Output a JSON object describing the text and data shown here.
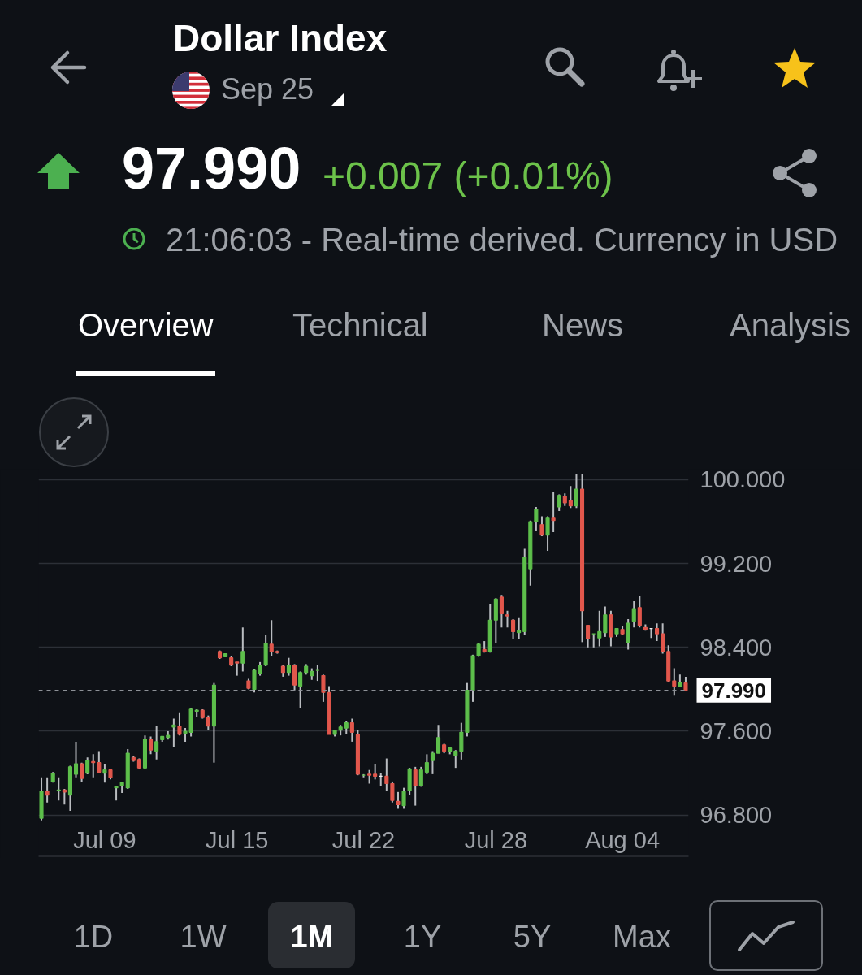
{
  "chart_data": {
    "type": "candlestick",
    "title": "Dollar Index",
    "subtitle": "Sep 25",
    "annotations": [
      "97.990",
      "+0.007 (+0.01%)",
      "21:06:03 - Real-time derived. Currency in USD",
      "Overview",
      "Technical",
      "News",
      "Analysis",
      "1D",
      "1W",
      "1M",
      "1Y",
      "5Y",
      "Max"
    ],
    "categories": [
      null,
      null,
      null,
      null,
      null,
      null,
      null,
      null,
      null,
      null,
      null,
      "Jul 09",
      null,
      null,
      null,
      null,
      null,
      null,
      null,
      null,
      null,
      null,
      null,
      null,
      null,
      null,
      null,
      null,
      null,
      null,
      null,
      null,
      null,
      null,
      "Jul 15",
      null,
      null,
      null,
      null,
      null,
      null,
      null,
      null,
      null,
      null,
      null,
      null,
      null,
      null,
      null,
      null,
      null,
      null,
      null,
      null,
      null,
      "Jul 22",
      null,
      null,
      null,
      null,
      null,
      null,
      null,
      null,
      null,
      null,
      null,
      null,
      null,
      null,
      null,
      null,
      null,
      null,
      null,
      null,
      null,
      null,
      "Jul 28",
      null,
      null,
      null,
      null,
      null,
      null,
      null,
      null,
      null,
      null,
      null,
      null,
      null,
      null,
      null,
      null,
      null,
      null,
      null,
      null,
      null,
      "Aug 04",
      null,
      null,
      null,
      null,
      null,
      null,
      null,
      null,
      null,
      null,
      null
    ],
    "ohlc": [
      [
        96.77,
        97.16,
        96.75,
        97.03
      ],
      [
        97.03,
        97.16,
        96.92,
        96.99
      ],
      [
        97.12,
        97.21,
        97.11,
        97.2
      ],
      [
        97.03,
        97.16,
        96.94,
        97.04
      ],
      [
        97.04,
        97.05,
        96.9,
        97.02
      ],
      [
        96.99,
        97.27,
        96.84,
        97.26
      ],
      [
        97.19,
        97.5,
        97.16,
        97.29
      ],
      [
        97.29,
        97.3,
        97.12,
        97.15
      ],
      [
        97.2,
        97.35,
        97.19,
        97.32
      ],
      [
        97.31,
        97.38,
        97.16,
        97.3
      ],
      [
        97.3,
        97.41,
        97.2,
        97.21
      ],
      [
        97.2,
        97.29,
        97.11,
        97.23
      ],
      [
        97.23,
        97.24,
        97.14,
        97.16
      ],
      [
        97.06,
        97.07,
        96.94,
        97.07
      ],
      [
        97.08,
        97.12,
        97.01,
        97.11
      ],
      [
        97.06,
        97.43,
        97.05,
        97.39
      ],
      [
        97.35,
        97.36,
        97.31,
        97.32
      ],
      [
        97.33,
        97.34,
        97.24,
        97.25
      ],
      [
        97.25,
        97.56,
        97.24,
        97.52
      ],
      [
        97.52,
        97.55,
        97.38,
        97.42
      ],
      [
        97.41,
        97.65,
        97.33,
        97.5
      ],
      [
        97.52,
        97.55,
        97.5,
        97.55
      ],
      [
        97.54,
        97.6,
        97.52,
        97.56
      ],
      [
        97.64,
        97.72,
        97.45,
        97.66
      ],
      [
        97.65,
        97.78,
        97.56,
        97.57
      ],
      [
        97.58,
        97.63,
        97.5,
        97.6
      ],
      [
        97.59,
        97.82,
        97.55,
        97.81
      ],
      [
        97.79,
        97.81,
        97.74,
        97.8
      ],
      [
        97.8,
        97.81,
        97.72,
        97.73
      ],
      [
        97.73,
        97.75,
        97.61,
        97.65
      ],
      [
        97.65,
        98.06,
        97.3,
        98.04
      ],
      [
        98.36,
        98.37,
        98.29,
        98.3
      ],
      [
        98.31,
        98.34,
        98.31,
        98.34
      ],
      [
        98.3,
        98.32,
        98.22,
        98.23
      ],
      [
        98.26,
        98.26,
        98.13,
        98.25
      ],
      [
        98.25,
        98.59,
        98.17,
        98.36
      ],
      [
        98.08,
        98.1,
        98.0,
        98.01
      ],
      [
        98.0,
        98.19,
        97.97,
        98.18
      ],
      [
        98.15,
        98.26,
        98.13,
        98.23
      ],
      [
        98.23,
        98.52,
        98.22,
        98.44
      ],
      [
        98.43,
        98.66,
        98.32,
        98.36
      ],
      [
        98.36,
        98.37,
        98.34,
        98.35
      ],
      [
        98.22,
        98.23,
        98.12,
        98.16
      ],
      [
        98.16,
        98.3,
        98.13,
        98.23
      ],
      [
        98.23,
        98.24,
        97.99,
        98.04
      ],
      [
        98.03,
        98.17,
        97.82,
        98.16
      ],
      [
        98.16,
        98.24,
        98.14,
        98.22
      ],
      [
        98.13,
        98.2,
        98.09,
        98.17
      ],
      [
        98.18,
        98.23,
        98.08,
        98.18
      ],
      [
        98.13,
        98.14,
        97.88,
        97.97
      ],
      [
        97.97,
        98.03,
        97.57,
        97.57
      ],
      [
        97.57,
        97.61,
        97.55,
        97.61
      ],
      [
        97.61,
        97.66,
        97.56,
        97.64
      ],
      [
        97.63,
        97.7,
        97.57,
        97.68
      ],
      [
        97.68,
        97.72,
        97.5,
        97.59
      ],
      [
        97.57,
        97.61,
        97.18,
        97.19
      ],
      [
        97.18,
        97.19,
        97.16,
        97.18
      ],
      [
        97.19,
        97.23,
        97.1,
        97.18
      ],
      [
        97.19,
        97.29,
        97.14,
        97.17
      ],
      [
        97.17,
        97.2,
        97.08,
        97.17
      ],
      [
        97.17,
        97.34,
        97.03,
        97.1
      ],
      [
        97.1,
        97.12,
        96.92,
        96.94
      ],
      [
        96.93,
        97.02,
        96.86,
        96.9
      ],
      [
        96.89,
        97.06,
        96.86,
        97.03
      ],
      [
        97.03,
        97.25,
        96.99,
        97.24
      ],
      [
        97.23,
        97.26,
        96.89,
        97.08
      ],
      [
        97.08,
        97.26,
        97.07,
        97.23
      ],
      [
        97.21,
        97.38,
        97.19,
        97.3
      ],
      [
        97.32,
        97.41,
        97.19,
        97.39
      ],
      [
        97.39,
        97.66,
        97.39,
        97.54
      ],
      [
        97.47,
        97.48,
        97.39,
        97.41
      ],
      [
        97.41,
        97.45,
        97.38,
        97.44
      ],
      [
        97.37,
        97.42,
        97.25,
        97.41
      ],
      [
        97.41,
        97.68,
        97.33,
        97.59
      ],
      [
        97.59,
        98.06,
        97.55,
        97.99
      ],
      [
        97.99,
        98.33,
        97.88,
        98.32
      ],
      [
        98.32,
        98.44,
        98.31,
        98.43
      ],
      [
        98.38,
        98.46,
        98.35,
        98.36
      ],
      [
        98.36,
        98.81,
        98.35,
        98.66
      ],
      [
        98.66,
        98.87,
        98.44,
        98.86
      ],
      [
        98.88,
        98.9,
        98.59,
        98.72
      ],
      [
        98.71,
        98.75,
        98.59,
        98.7
      ],
      [
        98.66,
        98.67,
        98.48,
        98.55
      ],
      [
        98.54,
        98.68,
        98.48,
        98.56
      ],
      [
        98.55,
        99.34,
        98.52,
        99.26
      ],
      [
        99.15,
        99.61,
        98.99,
        99.6
      ],
      [
        99.6,
        99.74,
        99.51,
        99.72
      ],
      [
        99.57,
        99.65,
        99.46,
        99.47
      ],
      [
        99.47,
        99.65,
        99.32,
        99.64
      ],
      [
        99.64,
        99.88,
        99.5,
        99.61
      ],
      [
        99.74,
        99.86,
        99.7,
        99.85
      ],
      [
        99.84,
        99.87,
        99.75,
        99.78
      ],
      [
        99.8,
        99.94,
        99.73,
        99.75
      ],
      [
        99.75,
        100.05,
        99.73,
        99.91
      ],
      [
        99.91,
        100.05,
        98.45,
        98.75
      ],
      [
        98.61,
        98.61,
        98.4,
        98.48
      ],
      [
        98.53,
        98.53,
        98.4,
        98.53
      ],
      [
        98.49,
        98.75,
        98.41,
        98.55
      ],
      [
        98.54,
        98.79,
        98.5,
        98.71
      ],
      [
        98.71,
        98.75,
        98.41,
        98.5
      ],
      [
        98.53,
        98.58,
        98.5,
        98.58
      ],
      [
        98.57,
        98.6,
        98.52,
        98.53
      ],
      [
        98.45,
        98.67,
        98.38,
        98.63
      ],
      [
        98.65,
        98.84,
        98.59,
        98.77
      ],
      [
        98.78,
        98.89,
        98.59,
        98.61
      ],
      [
        98.59,
        98.62,
        98.56,
        98.57
      ],
      [
        98.58,
        98.58,
        98.49,
        98.58
      ],
      [
        98.58,
        98.63,
        98.46,
        98.53
      ],
      [
        98.53,
        98.63,
        98.34,
        98.36
      ],
      [
        98.36,
        98.42,
        98.07,
        98.08
      ],
      [
        98.08,
        98.2,
        97.94,
        98.03
      ],
      [
        98.03,
        98.14,
        98.03,
        98.06
      ],
      [
        98.06,
        98.12,
        97.99,
        97.99
      ]
    ],
    "color": "#b9bcc0",
    "colors": [
      "#5dbf4b",
      "#e2574c",
      "#5dbf4b",
      "#5dbf4b",
      "#e2574c",
      "#5dbf4b",
      "#5dbf4b",
      "#e2574c",
      "#5dbf4b",
      "#e2574c",
      "#e2574c",
      "#5dbf4b",
      "#e2574c",
      "#5dbf4b",
      "#5dbf4b",
      "#5dbf4b",
      "#e2574c",
      "#e2574c",
      "#5dbf4b",
      "#e2574c",
      "#5dbf4b",
      "#5dbf4b",
      "#5dbf4b",
      "#5dbf4b",
      "#e2574c",
      "#5dbf4b",
      "#5dbf4b",
      "#5dbf4b",
      "#e2574c",
      "#e2574c",
      "#5dbf4b",
      "#e2574c",
      "#5dbf4b",
      "#e2574c",
      "#e2574c",
      "#5dbf4b",
      "#e2574c",
      "#5dbf4b",
      "#5dbf4b",
      "#5dbf4b",
      "#e2574c",
      "#e2574c",
      "#e2574c",
      "#5dbf4b",
      "#e2574c",
      "#5dbf4b",
      "#5dbf4b",
      "#5dbf4b",
      "#5dbf4b",
      "#e2574c",
      "#e2574c",
      "#5dbf4b",
      "#5dbf4b",
      "#5dbf4b",
      "#e2574c",
      "#e2574c",
      "#5dbf4b",
      "#e2574c",
      "#e2574c",
      "#f0f0f0",
      "#e2574c",
      "#e2574c",
      "#e2574c",
      "#5dbf4b",
      "#5dbf4b",
      "#e2574c",
      "#5dbf4b",
      "#5dbf4b",
      "#5dbf4b",
      "#5dbf4b",
      "#e2574c",
      "#5dbf4b",
      "#5dbf4b",
      "#5dbf4b",
      "#5dbf4b",
      "#5dbf4b",
      "#5dbf4b",
      "#e2574c",
      "#5dbf4b",
      "#5dbf4b",
      "#e2574c",
      "#e2574c",
      "#e2574c",
      "#5dbf4b",
      "#5dbf4b",
      "#5dbf4b",
      "#5dbf4b",
      "#e2574c",
      "#5dbf4b",
      "#e2574c",
      "#5dbf4b",
      "#e2574c",
      "#e2574c",
      "#5dbf4b",
      "#e2574c",
      "#e2574c",
      "#5dbf4b",
      "#5dbf4b",
      "#5dbf4b",
      "#e2574c",
      "#5dbf4b",
      "#e2574c",
      "#5dbf4b",
      "#5dbf4b",
      "#e2574c",
      "#e2574c",
      "#f0f0f0",
      "#e2574c",
      "#e2574c",
      "#e2574c",
      "#e2574c",
      "#5dbf4b",
      "#e2574c"
    ],
    "ylim": [
      96.41,
      100.1
    ],
    "yticks": [
      {
        "value": 96.8,
        "label": "96.800"
      },
      {
        "value": 97.6,
        "label": "97.600"
      },
      {
        "value": 98.4,
        "label": "98.400"
      },
      {
        "value": 99.2,
        "label": "99.200"
      },
      {
        "value": 100,
        "label": "100.000"
      }
    ],
    "grid": "y",
    "ref_lines": [
      {
        "axis": "y",
        "value": 97.99,
        "label": "97.990",
        "color": "#8d9197",
        "line_style": "dashed"
      }
    ]
  }
}
